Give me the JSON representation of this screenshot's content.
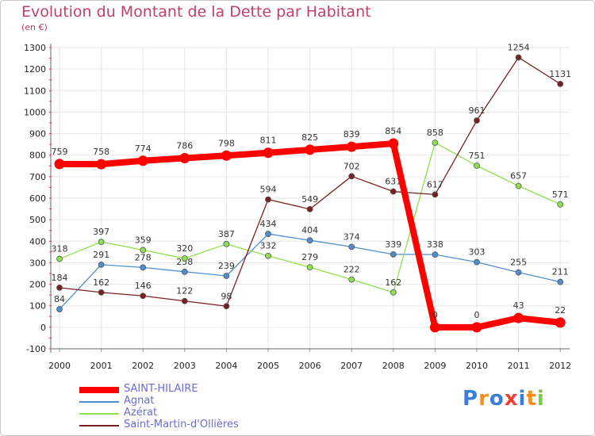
{
  "title": "Evolution du Montant de la Dette par Habitant",
  "subtitle": "(en €)",
  "brand": "Proxiti",
  "chart_data": {
    "type": "line",
    "x": [
      "2000",
      "2001",
      "2002",
      "2003",
      "2004",
      "2005",
      "2006",
      "2007",
      "2008",
      "2009",
      "2010",
      "2011",
      "2012"
    ],
    "ylim": [
      -100,
      1300
    ],
    "yticks": [
      "-100",
      "0",
      "100",
      "200",
      "300",
      "400",
      "500",
      "600",
      "700",
      "800",
      "900",
      "1000",
      "1100",
      "1200",
      "1300"
    ],
    "grid": true,
    "legend_position": "bottom-left",
    "series": [
      {
        "name": "SAINT-HILAIRE",
        "color": "#ff0000",
        "values": [
          759,
          758,
          774,
          786,
          798,
          811,
          825,
          839,
          854,
          0,
          0,
          43,
          22
        ],
        "labels": [
          "759",
          "758",
          "774",
          "786",
          "798",
          "811",
          "825",
          "839",
          "854",
          "0",
          "0",
          "43",
          "22"
        ]
      },
      {
        "name": "Agnat",
        "color": "#4f8fd0",
        "values": [
          84,
          291,
          278,
          258,
          239,
          434,
          404,
          374,
          339,
          338,
          303,
          255,
          211
        ],
        "labels": [
          "84",
          "291",
          "278",
          "258",
          "239",
          "434",
          "404",
          "374",
          "339",
          "338",
          "303",
          "255",
          "211"
        ]
      },
      {
        "name": "Azérat",
        "color": "#8fe04f",
        "values": [
          318,
          397,
          359,
          320,
          387,
          332,
          279,
          222,
          162,
          858,
          751,
          657,
          571
        ],
        "labels": [
          "318",
          "397",
          "359",
          "320",
          "387",
          "332",
          "279",
          "222",
          "162",
          "858",
          "751",
          "657",
          "571"
        ]
      },
      {
        "name": "Saint-Martin-d'Ollières",
        "color": "#7a1f1f",
        "values": [
          184,
          162,
          146,
          122,
          98,
          594,
          549,
          702,
          631,
          617,
          961,
          1254,
          1131
        ],
        "labels": [
          "184",
          "162",
          "146",
          "122",
          "98",
          "594",
          "549",
          "702",
          "631",
          "617",
          "961",
          "1254",
          "1131"
        ]
      }
    ]
  }
}
